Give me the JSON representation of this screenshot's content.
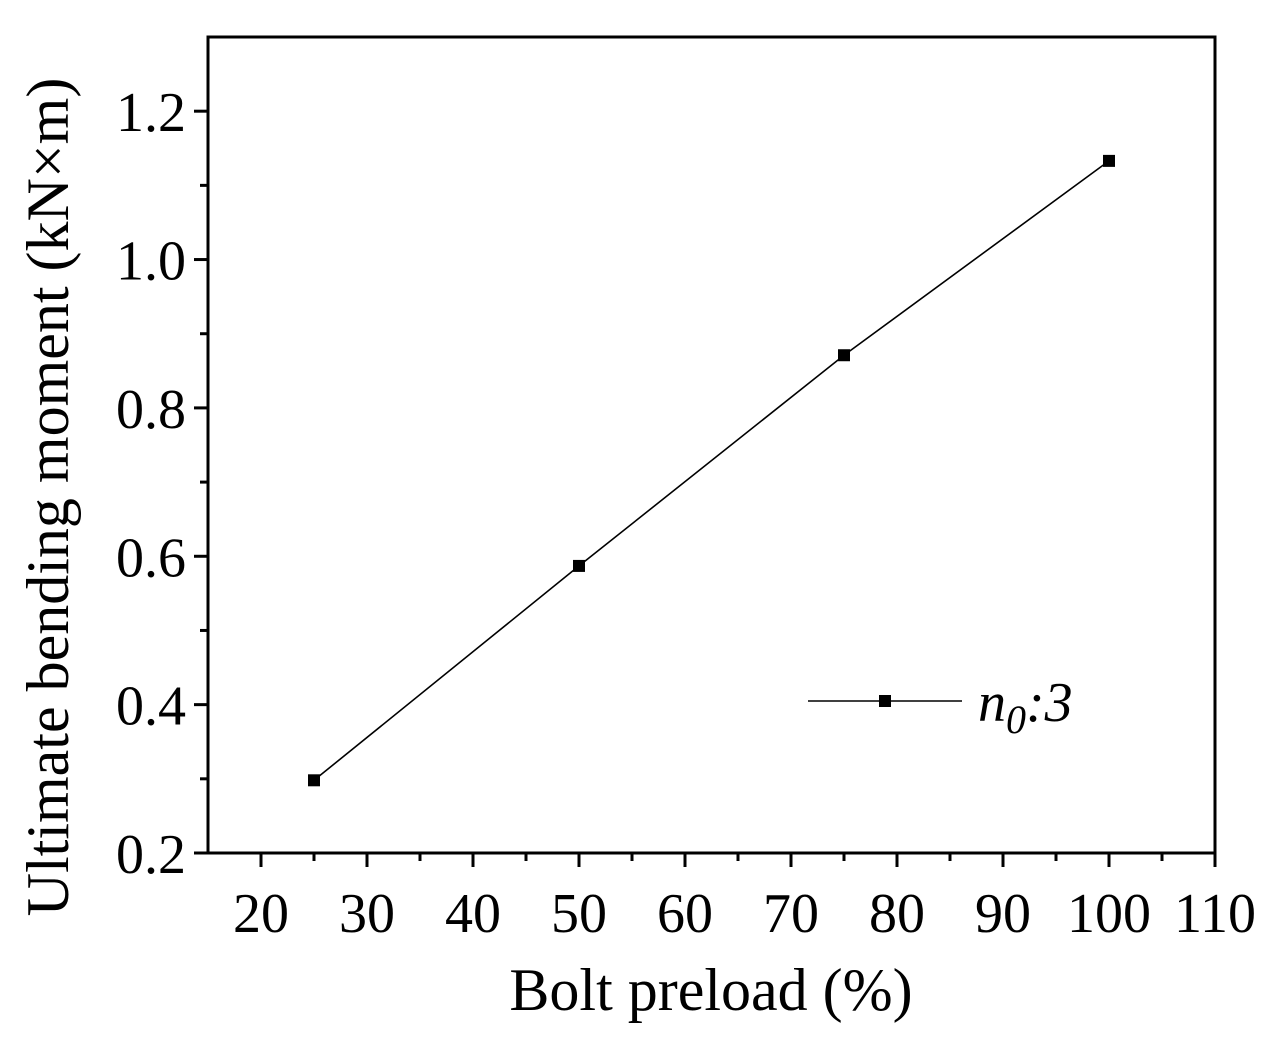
{
  "chart_data": {
    "type": "line",
    "xlabel": "Bolt preload (%)",
    "ylabel": "Ultimate bending moment (kN×m)",
    "xlim": [
      15,
      110
    ],
    "ylim": [
      0.2,
      1.3
    ],
    "x_ticks": [
      20,
      30,
      40,
      50,
      60,
      70,
      80,
      90,
      100,
      110
    ],
    "x_tick_labels": [
      "20",
      "30",
      "40",
      "50",
      "60",
      "70",
      "80",
      "90",
      "100",
      "110"
    ],
    "y_ticks": [
      0.2,
      0.4,
      0.6,
      0.8,
      1.0,
      1.2
    ],
    "y_tick_labels": [
      "0.2",
      "0.4",
      "0.6",
      "0.8",
      "1.0",
      "1.2"
    ],
    "grid": false,
    "legend_position": "bottom-right",
    "series": [
      {
        "name": "n0:3",
        "legend_main": "n",
        "legend_sub": "0",
        "legend_suffix": ":3",
        "color": "#000000",
        "marker": "square",
        "x": [
          25,
          50,
          75,
          100
        ],
        "y": [
          0.298,
          0.587,
          0.871,
          1.133
        ]
      }
    ]
  }
}
